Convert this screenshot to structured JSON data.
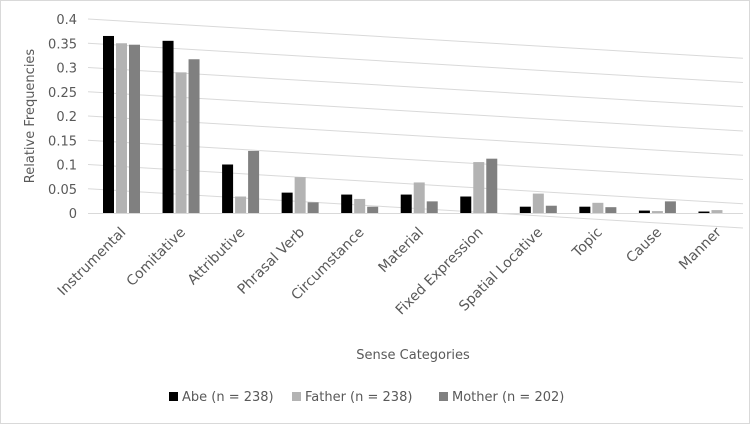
{
  "chart_data": {
    "type": "bar",
    "title": "",
    "xlabel": "Sense Categories",
    "ylabel": "Relative Frequencies",
    "ylim": [
      0,
      0.4
    ],
    "yticks": [
      "0",
      "0.05",
      "0.1",
      "0.15",
      "0.2",
      "0.25",
      "0.3",
      "0.35",
      "0.4"
    ],
    "categories": [
      "Instrumental",
      "Comitative",
      "Attributive",
      "Phrasal Verb",
      "Circumstance",
      "Material",
      "Fixed Expression",
      "Spatial Locative",
      "Topic",
      "Cause",
      "Manner"
    ],
    "series": [
      {
        "name": "Abe (n = 238)",
        "color": "#000000",
        "values": [
          0.365,
          0.355,
          0.1,
          0.042,
          0.038,
          0.038,
          0.034,
          0.013,
          0.013,
          0.005,
          0.003
        ]
      },
      {
        "name": "Father (n = 238)",
        "color": "#b3b3b3",
        "values": [
          0.35,
          0.29,
          0.034,
          0.074,
          0.029,
          0.063,
          0.105,
          0.04,
          0.021,
          0.004,
          0.006
        ]
      },
      {
        "name": "Mother (n = 202)",
        "color": "#808080",
        "values": [
          0.347,
          0.317,
          0.128,
          0.022,
          0.013,
          0.024,
          0.112,
          0.015,
          0.012,
          0.024,
          0.0
        ]
      }
    ],
    "legend_position": "bottom"
  }
}
